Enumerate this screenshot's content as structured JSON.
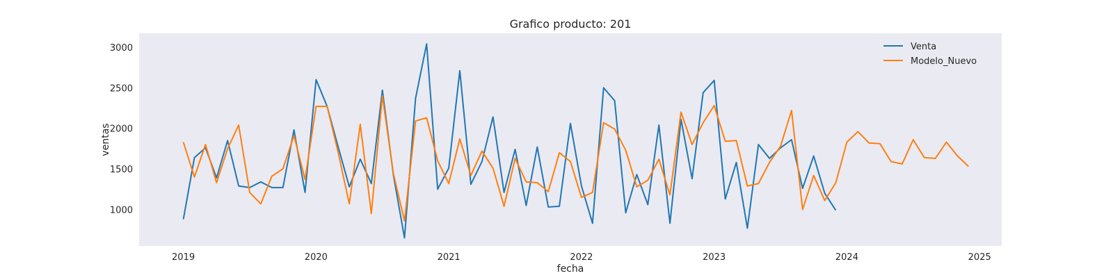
{
  "chart_data": {
    "type": "line",
    "title": "Grafico producto: 201",
    "xlabel": "fecha",
    "ylabel": "ventas",
    "grid": false,
    "legend_position": "top-right",
    "xlim": [
      "2018-09",
      "2025-03"
    ],
    "ylim": [
      550,
      3170
    ],
    "x_ticks": [
      "2019",
      "2020",
      "2021",
      "2022",
      "2023",
      "2024",
      "2025"
    ],
    "y_ticks": [
      1000,
      1500,
      2000,
      2500,
      3000
    ],
    "series": [
      {
        "name": "Venta",
        "color": "#1f77b4",
        "start": "2019-01",
        "values": [
          880,
          1640,
          1760,
          1390,
          1850,
          1290,
          1270,
          1340,
          1270,
          1270,
          1980,
          1210,
          2600,
          2270,
          1770,
          1280,
          1620,
          1320,
          2470,
          1420,
          650,
          2370,
          3040,
          1250,
          1510,
          2710,
          1310,
          1590,
          2140,
          1210,
          1740,
          1050,
          1770,
          1030,
          1040,
          2060,
          1290,
          830,
          2500,
          2340,
          960,
          1430,
          1060,
          2040,
          830,
          2110,
          1380,
          2440,
          2590,
          1130,
          1580,
          770,
          1800,
          1630,
          1760,
          1860,
          1260,
          1660,
          1200,
          990
        ]
      },
      {
        "name": "Modelo_Nuevo",
        "color": "#ff7f0e",
        "start": "2019-01",
        "values": [
          1830,
          1400,
          1800,
          1330,
          1750,
          2040,
          1210,
          1070,
          1410,
          1500,
          1910,
          1370,
          2270,
          2270,
          1700,
          1070,
          2050,
          950,
          2400,
          1440,
          860,
          2090,
          2130,
          1600,
          1320,
          1870,
          1420,
          1720,
          1510,
          1040,
          1630,
          1340,
          1330,
          1220,
          1700,
          1590,
          1150,
          1210,
          2070,
          1990,
          1730,
          1280,
          1360,
          1620,
          1180,
          2200,
          1800,
          2070,
          2280,
          1840,
          1850,
          1290,
          1320,
          1580,
          1780,
          2220,
          1000,
          1420,
          1110,
          1330,
          1830,
          1960,
          1820,
          1810,
          1590,
          1560,
          1860,
          1640,
          1630,
          1830,
          1660,
          1530
        ]
      }
    ]
  }
}
